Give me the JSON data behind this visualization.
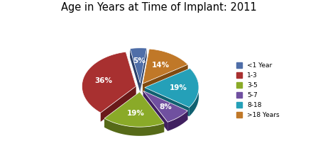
{
  "title": "Age in Years at Time of Implant: 2011",
  "labels": [
    "<1 Year",
    "1-3",
    "3-5",
    "5-7",
    "8-18",
    ">18 Years"
  ],
  "values": [
    5,
    36,
    19,
    8,
    19,
    14
  ],
  "colors": [
    "#4F6EA8",
    "#A83030",
    "#8AAA28",
    "#7050A0",
    "#25A0B8",
    "#C07828"
  ],
  "dark_colors": [
    "#2A3F6A",
    "#6A1A1A",
    "#566A18",
    "#402060",
    "#106070",
    "#804A10"
  ],
  "explode": [
    0.06,
    0.06,
    0.06,
    0.06,
    0.06,
    0.06
  ],
  "startangle": 83,
  "legend_labels": [
    "<1 Year",
    "1-3",
    "3-5",
    "5-7",
    "8-18",
    ">18 Years"
  ],
  "title_fontsize": 10.5,
  "pct_fontsize": 7.5,
  "depth": 0.12
}
